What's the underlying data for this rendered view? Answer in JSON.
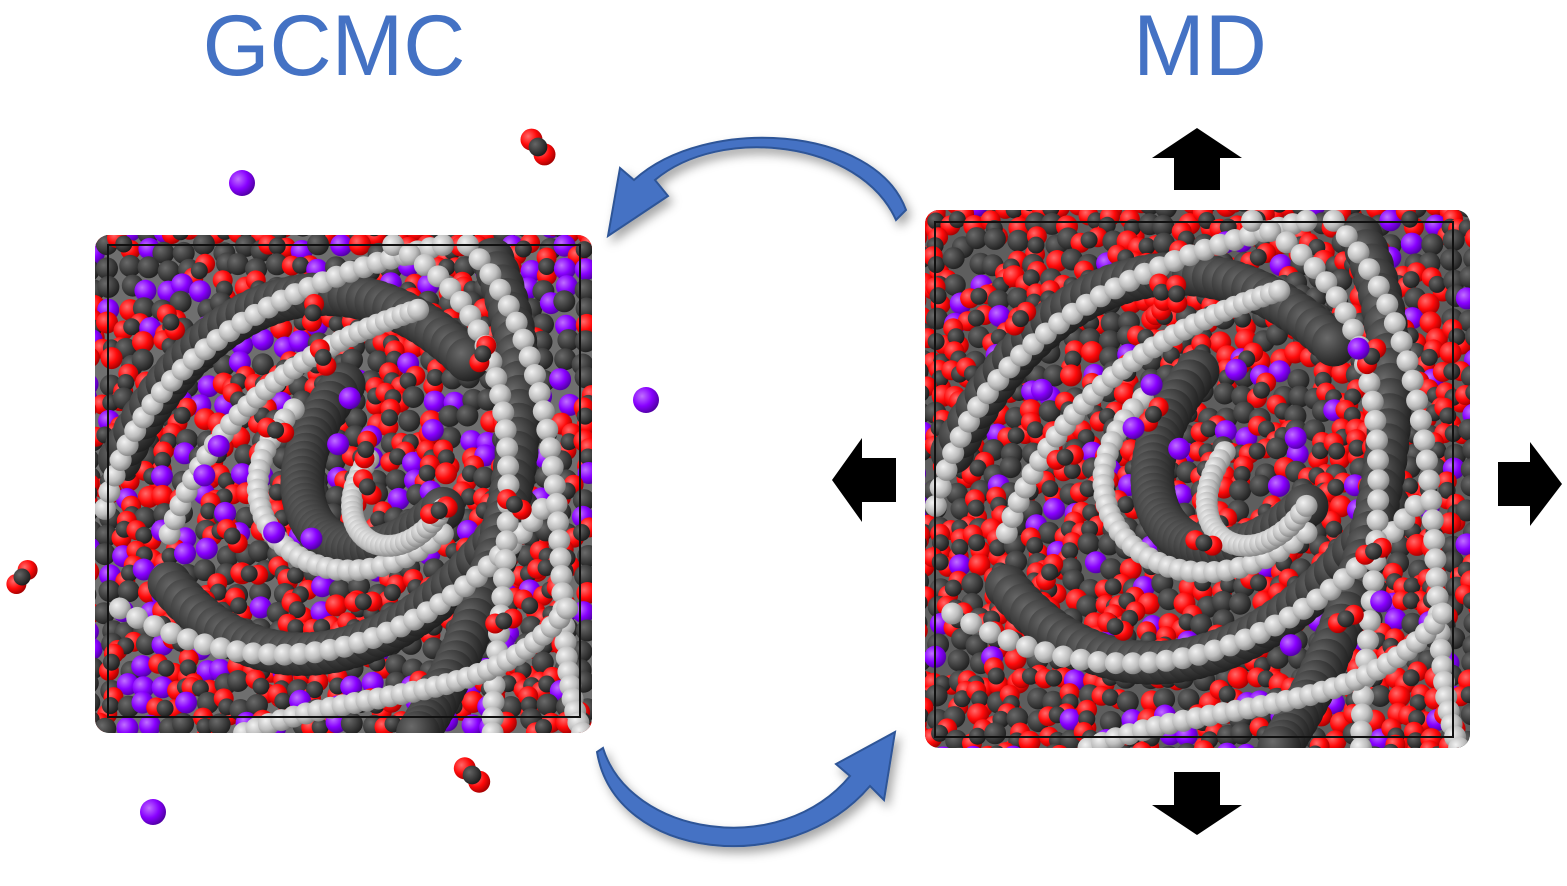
{
  "labels": {
    "left": "GCMC",
    "right": "MD"
  },
  "colors": {
    "label": "#4472C4",
    "arrow_curved": "#4472C4",
    "arrow_curved_edge": "#2F5597",
    "arrow_expand": "#000000",
    "framework_light": "#bdbdbd",
    "framework_dark": "#3a3a3a",
    "oxygen": "#ff1010",
    "carbon": "#2b2b2b",
    "ion": "#8a00ff"
  },
  "icons": {
    "top_arrow": "triangle-arrow-up",
    "bottom_arrow": "triangle-arrow-down",
    "left_arrow": "triangle-arrow-left",
    "right_arrow": "triangle-arrow-right",
    "exchange_top": "curved-arrow-left",
    "exchange_bottom": "curved-arrow-right"
  }
}
